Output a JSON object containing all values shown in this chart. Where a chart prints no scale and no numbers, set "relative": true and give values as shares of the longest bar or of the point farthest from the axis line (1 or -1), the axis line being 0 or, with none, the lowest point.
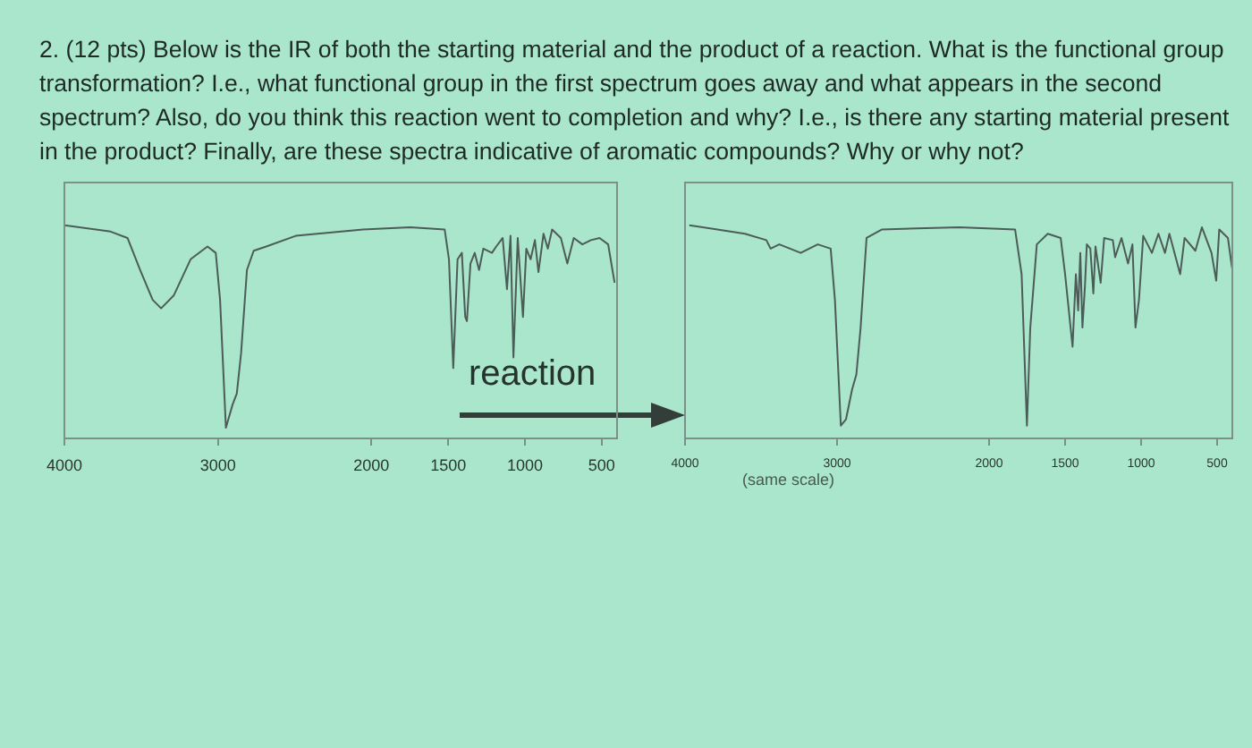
{
  "chart_data": [
    {
      "type": "line",
      "title": "2. (12 pts) Below is the IR of both the starting material and the product of a reaction. What is the functional group transformation? I.e., what functional group in the first spectrum goes away and what appears in the second spectrum? Also, do you think this reaction went to completion and why? I.e., is there any starting material present in the product? Finally, are these spectra indicative of aromatic compounds? Why or why not?",
      "annotations": [
        "reaction"
      ],
      "relative": true,
      "tick_labels": "x",
      "color": "#4d5c58",
      "xlim": [
        4000,
        400
      ],
      "xticks": [
        4000,
        3000,
        2000,
        1500,
        1000,
        500
      ],
      "x": [
        4000,
        3699,
        3589,
        3507,
        3425,
        3370,
        3288,
        3178,
        3068,
        3014,
        2986,
        2948,
        2904,
        2877,
        2849,
        2811,
        2767,
        2685,
        2493,
        2055,
        1748,
        1523,
        1495,
        1467,
        1439,
        1411,
        1389,
        1378,
        1355,
        1327,
        1299,
        1271,
        1215,
        1187,
        1145,
        1117,
        1094,
        1075,
        1047,
        1013,
        991,
        963,
        935,
        912,
        879,
        851,
        823,
        766,
        724,
        682,
        626,
        570,
        514,
        458,
        416
      ],
      "values": [
        1.0,
        0.97,
        0.94,
        0.79,
        0.65,
        0.61,
        0.67,
        0.84,
        0.9,
        0.87,
        0.65,
        0.05,
        0.16,
        0.21,
        0.4,
        0.79,
        0.88,
        0.9,
        0.95,
        0.98,
        0.99,
        0.98,
        0.84,
        0.33,
        0.84,
        0.87,
        0.57,
        0.55,
        0.82,
        0.87,
        0.79,
        0.89,
        0.87,
        0.9,
        0.94,
        0.7,
        0.95,
        0.38,
        0.94,
        0.57,
        0.89,
        0.84,
        0.93,
        0.78,
        0.96,
        0.89,
        0.98,
        0.94,
        0.82,
        0.94,
        0.91,
        0.93,
        0.94,
        0.91,
        0.73
      ]
    },
    {
      "type": "line",
      "annotations": [
        "(same scale)"
      ],
      "relative": true,
      "color": "#4d5c58",
      "xlim": [
        4000,
        400
      ],
      "xticks": [
        4000,
        3000,
        2000,
        1500,
        1000,
        500
      ],
      "x": [
        3972,
        3606,
        3465,
        3437,
        3380,
        3239,
        3127,
        3042,
        3014,
        2975,
        2941,
        2901,
        2873,
        2845,
        2806,
        2704,
        2197,
        1829,
        1786,
        1751,
        1729,
        1686,
        1614,
        1529,
        1500,
        1451,
        1429,
        1414,
        1400,
        1386,
        1369,
        1357,
        1334,
        1314,
        1300,
        1266,
        1243,
        1186,
        1171,
        1129,
        1086,
        1057,
        1037,
        1014,
        986,
        929,
        886,
        843,
        814,
        743,
        714,
        643,
        600,
        537,
        506,
        486,
        429,
        402
      ],
      "values": [
        1.0,
        0.96,
        0.93,
        0.89,
        0.91,
        0.87,
        0.91,
        0.89,
        0.65,
        0.06,
        0.09,
        0.23,
        0.3,
        0.52,
        0.94,
        0.98,
        0.99,
        0.98,
        0.77,
        0.06,
        0.52,
        0.91,
        0.96,
        0.94,
        0.77,
        0.43,
        0.77,
        0.6,
        0.87,
        0.52,
        0.72,
        0.91,
        0.89,
        0.68,
        0.9,
        0.73,
        0.94,
        0.93,
        0.85,
        0.94,
        0.82,
        0.91,
        0.52,
        0.65,
        0.95,
        0.87,
        0.96,
        0.87,
        0.96,
        0.77,
        0.94,
        0.88,
        0.99,
        0.87,
        0.74,
        0.98,
        0.94,
        0.8
      ]
    }
  ]
}
